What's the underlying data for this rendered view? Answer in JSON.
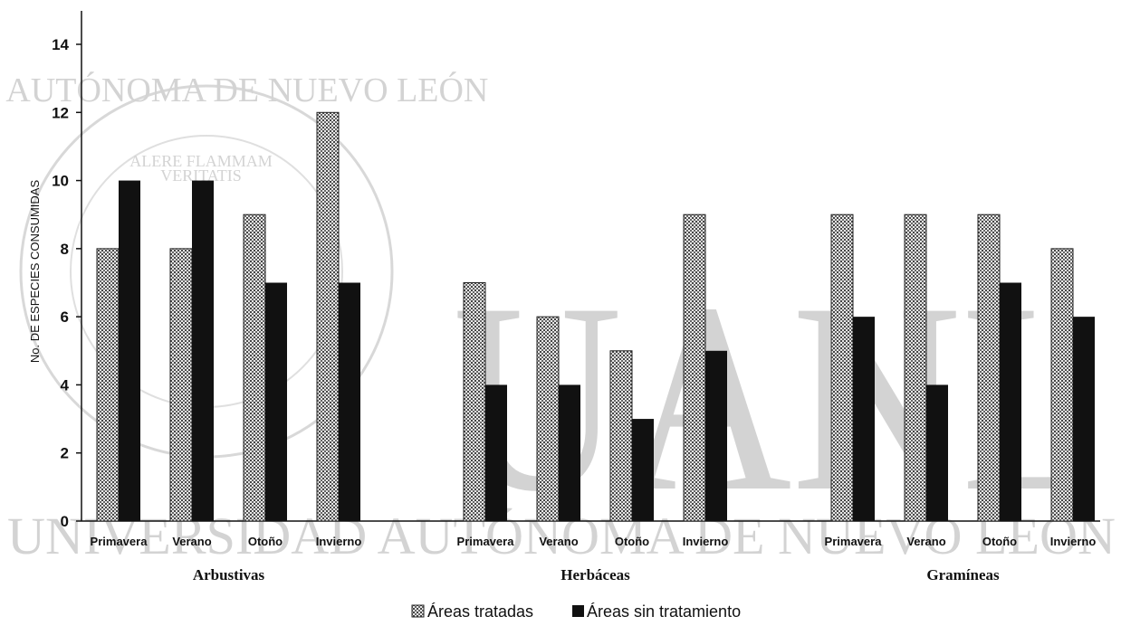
{
  "watermark": {
    "top_text": "DAD AUTÓNOMA DE NUEVO LEÓN",
    "motto_line1": "ALERE FLAMMAM",
    "motto_line2": "VERITATIS",
    "big_text": "UANL",
    "bottom_text": "UNIVERSIDAD AUTÓNOMA DE NUEVO LEÓN"
  },
  "chart_data": {
    "type": "bar",
    "ylabel": "No. DE ESPECIES CONSUMIDAS",
    "ylim": [
      0,
      14
    ],
    "yticks": [
      0,
      2,
      4,
      6,
      8,
      10,
      12,
      14
    ],
    "groups": [
      {
        "name": "Arbustivas",
        "categories": [
          "Primavera",
          "Verano",
          "Otoño",
          "Invierno"
        ]
      },
      {
        "name": "Herbáceas",
        "categories": [
          "Primavera",
          "Verano",
          "Otoño",
          "Invierno"
        ]
      },
      {
        "name": "Gramíneas",
        "categories": [
          "Primavera",
          "Verano",
          "Otoño",
          "Invierno"
        ]
      }
    ],
    "series": [
      {
        "name": "Áreas tratadas",
        "values": [
          8,
          8,
          9,
          12,
          7,
          6,
          5,
          9,
          9,
          9,
          9,
          8
        ],
        "color": "#8a8a8a"
      },
      {
        "name": "Áreas sin tratamiento",
        "values": [
          10,
          10,
          7,
          7,
          4,
          4,
          3,
          5,
          6,
          4,
          7,
          6
        ],
        "color": "#111111"
      }
    ],
    "legend_position": "bottom-center",
    "grid": false
  }
}
